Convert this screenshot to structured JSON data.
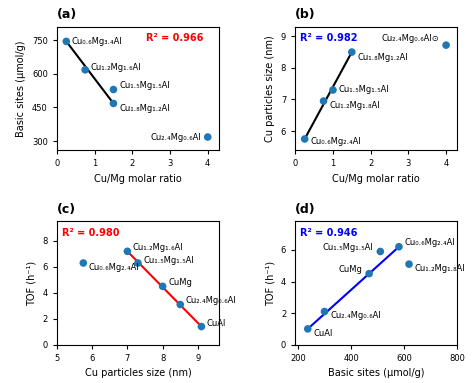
{
  "chart_data": [
    {
      "type": "scatter",
      "title": "(a)",
      "xlabel": "Cu/Mg molar ratio",
      "ylabel": "Basic sites (μmol/g)",
      "xlim": [
        0,
        4.3
      ],
      "ylim": [
        260,
        810
      ],
      "xticks": [
        0,
        1,
        2,
        3,
        4
      ],
      "yticks": [
        300,
        450,
        600,
        750
      ],
      "series": [
        {
          "type": "scatter",
          "x": [
            0.25,
            0.75,
            1.5,
            1.5,
            4.0
          ],
          "values": [
            745,
            618,
            530,
            468,
            318
          ],
          "labels": [
            "Cu₀.₆Mg₃.₄Al",
            "Cu₁.₂Mg₁.₆Al",
            "Cu₁.₅Mg₁.₅Al",
            "Cu₁.₈Mg₁.₂Al",
            "Cu₂.₄Mg₀.₆Al"
          ]
        },
        {
          "type": "line",
          "x": [
            0.25,
            1.5
          ],
          "values": [
            745,
            468
          ],
          "color": "black"
        }
      ],
      "annotations": [
        {
          "text": "R² = 0.966",
          "color": "red"
        }
      ]
    },
    {
      "type": "scatter",
      "title": "(b)",
      "xlabel": "Cu/Mg molar ratio",
      "ylabel": "Cu particles size (nm)",
      "xlim": [
        0,
        4.3
      ],
      "ylim": [
        5.4,
        9.3
      ],
      "xticks": [
        0,
        1,
        2,
        3,
        4
      ],
      "yticks": [
        6,
        7,
        8,
        9
      ],
      "series": [
        {
          "type": "scatter",
          "x": [
            0.25,
            0.75,
            1.0,
            1.5,
            4.0
          ],
          "values": [
            5.75,
            6.95,
            7.3,
            8.5,
            8.72
          ],
          "labels": [
            "Cu₀.₆Mg₂.₄Al",
            "Cu₁.₂Mg₁.₈Al",
            "Cu₁.₅Mg₁.₅Al",
            "Cu₁.₈Mg₁.₂Al",
            "Cu₂.₄Mg₀.₆Al⊙"
          ]
        },
        {
          "type": "line",
          "x": [
            0.25,
            1.5
          ],
          "values": [
            5.75,
            8.5
          ],
          "color": "black"
        }
      ],
      "annotations": [
        {
          "text": "R² = 0.982",
          "color": "blue"
        }
      ]
    },
    {
      "type": "scatter",
      "title": "(c)",
      "xlabel": "Cu particles size (nm)",
      "ylabel": "TOF (h⁻¹)",
      "xlim": [
        5,
        9.6
      ],
      "ylim": [
        0,
        9.5
      ],
      "xticks": [
        5,
        6,
        7,
        8,
        9
      ],
      "yticks": [
        0,
        2,
        4,
        6,
        8
      ],
      "series": [
        {
          "type": "scatter",
          "x": [
            5.75,
            7.0,
            7.3,
            8.0,
            8.5,
            9.1
          ],
          "values": [
            6.3,
            7.2,
            6.3,
            4.5,
            3.1,
            1.4
          ],
          "labels": [
            "Cu₀.₆Mg₂.₄Al",
            "Cu₁.₂Mg₁.₆Al",
            "Cu₁.₅Mg₁.₅Al",
            "CuMg",
            "Cu₂.₄Mg₀.₆Al",
            "CuAl"
          ]
        },
        {
          "type": "line",
          "x": [
            7.0,
            9.1
          ],
          "values": [
            7.2,
            1.4
          ],
          "color": "red"
        }
      ],
      "annotations": [
        {
          "text": "R² = 0.980",
          "color": "red"
        }
      ]
    },
    {
      "type": "scatter",
      "title": "(d)",
      "xlabel": "Basic sites (μmol/g)",
      "ylabel": "TOF (h⁻¹)",
      "xlim": [
        190,
        800
      ],
      "ylim": [
        0,
        7.8
      ],
      "xticks": [
        200,
        400,
        600,
        800
      ],
      "yticks": [
        0,
        2,
        4,
        6
      ],
      "series": [
        {
          "type": "scatter",
          "x": [
            237,
            300,
            468,
            510,
            580,
            618
          ],
          "values": [
            1.0,
            2.1,
            4.5,
            5.9,
            6.2,
            5.1
          ],
          "labels": [
            "CuAl",
            "Cu₂.₄Mg₀.₆Al",
            "CuMg",
            "Cu₁.₅Mg₁.₅Al",
            "Cu₀.₆Mg₂.₄Al",
            "Cu₁.₂Mg₁.₈Al"
          ]
        },
        {
          "type": "line",
          "x": [
            237,
            580
          ],
          "values": [
            1.0,
            6.2
          ],
          "color": "blue"
        }
      ],
      "annotations": [
        {
          "text": "R² = 0.946",
          "color": "blue"
        }
      ]
    }
  ]
}
